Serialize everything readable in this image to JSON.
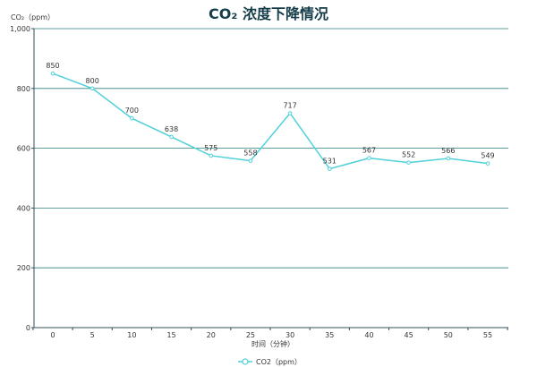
{
  "chart_data": {
    "type": "line",
    "title": "CO₂ 浓度下降情况",
    "xlabel": "时间（分钟）",
    "ylabel": "CO₂（ppm）",
    "x": [
      0,
      5,
      10,
      15,
      20,
      25,
      30,
      35,
      40,
      45,
      50,
      55
    ],
    "ylim": [
      0,
      1000
    ],
    "yticks": [
      "0",
      "200",
      "400",
      "600",
      "800",
      "1,000"
    ],
    "grid": true,
    "legend_position": "bottom",
    "series": [
      {
        "name": "CO2（ppm）",
        "values": [
          850,
          800,
          700,
          638,
          575,
          558,
          717,
          531,
          567,
          552,
          566,
          549
        ],
        "color": "#4fd1d9"
      }
    ],
    "gridColor": "#2f7f7f",
    "axisColor": "#2f4f5a"
  }
}
